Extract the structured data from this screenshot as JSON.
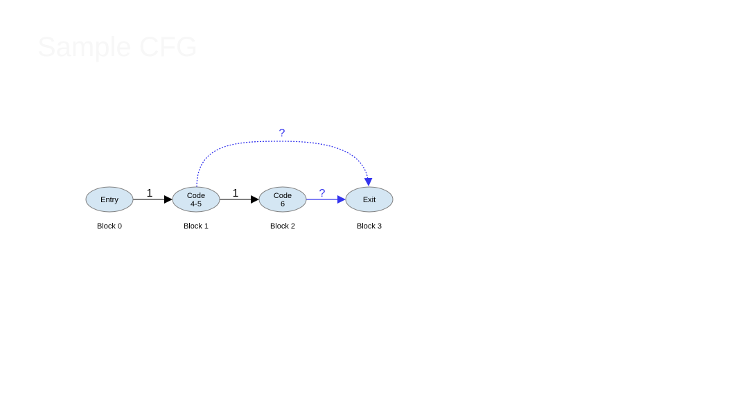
{
  "watermark": "Sample CFG",
  "colors": {
    "node_fill": "#d4e6f3",
    "node_stroke": "#7f7f7f",
    "edge_solid": "#000000",
    "edge_uncertain": "#3333ee"
  },
  "nodes": [
    {
      "id": "entry",
      "lines": [
        "Entry"
      ],
      "block_label": "Block 0"
    },
    {
      "id": "code45",
      "lines": [
        "Code",
        "4-5"
      ],
      "block_label": "Block 1"
    },
    {
      "id": "code6",
      "lines": [
        "Code",
        "6"
      ],
      "block_label": "Block 2"
    },
    {
      "id": "exit",
      "lines": [
        "Exit"
      ],
      "block_label": "Block 3"
    }
  ],
  "edges": [
    {
      "from": "entry",
      "to": "code45",
      "label": "1",
      "style": "solid"
    },
    {
      "from": "code45",
      "to": "code6",
      "label": "1",
      "style": "solid"
    },
    {
      "from": "code6",
      "to": "exit",
      "label": "?",
      "style": "uncertain"
    },
    {
      "from": "code45",
      "to": "exit",
      "label": "?",
      "style": "dashed-arc"
    }
  ]
}
